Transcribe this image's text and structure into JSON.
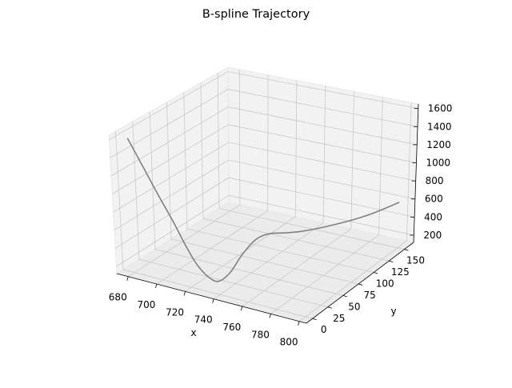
{
  "chart_data": {
    "type": "line",
    "projection": "3d",
    "title": "B-spline Trajectory",
    "xlabel": "x",
    "ylabel": "y",
    "zlabel": "",
    "xlim": [
      672,
      805
    ],
    "ylim": [
      -10,
      165
    ],
    "zlim": [
      120,
      1650
    ],
    "xticks": [
      680,
      700,
      720,
      740,
      760,
      780,
      800
    ],
    "yticks": [
      0,
      25,
      50,
      75,
      100,
      125,
      150
    ],
    "zticks": [
      200,
      400,
      600,
      800,
      1000,
      1200,
      1400,
      1600
    ],
    "grid": true,
    "line_color": "#808080",
    "series": [
      {
        "x": [
          680,
          690,
          700,
          708,
          715,
          721,
          726,
          730,
          733,
          736,
          740,
          744,
          749,
          755,
          762,
          770,
          778,
          786,
          793,
          800
        ],
        "y": [
          0,
          0.5,
          1.5,
          3,
          5,
          8,
          13,
          20,
          32,
          45,
          58,
          70,
          82,
          94,
          106,
          117,
          127,
          137,
          145,
          150
        ],
        "z": [
          1600,
          1300,
          1000,
          760,
          520,
          330,
          200,
          130,
          180,
          330,
          450,
          470,
          440,
          420,
          420,
          440,
          470,
          510,
          560,
          620
        ]
      }
    ]
  }
}
